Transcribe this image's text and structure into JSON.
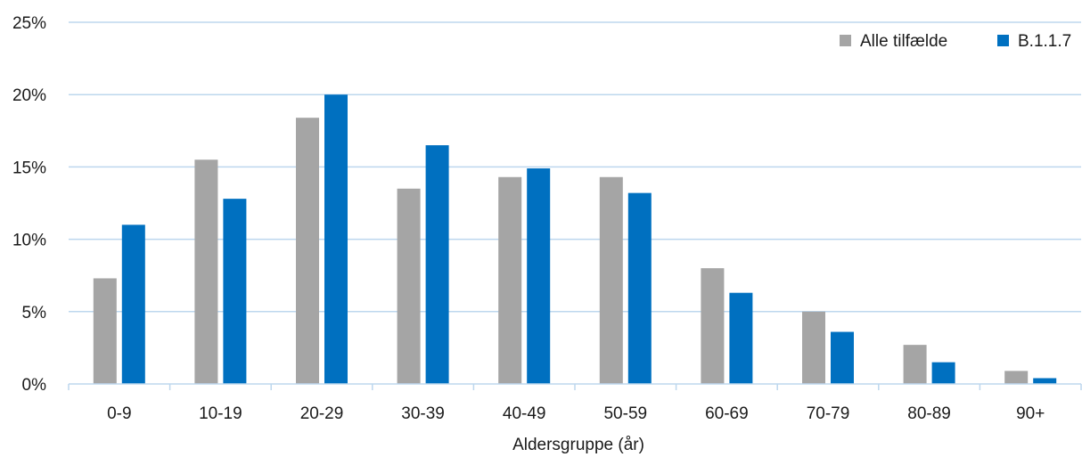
{
  "chart_data": {
    "type": "bar",
    "title": "",
    "xlabel": "Aldersgruppe (år)",
    "ylabel": "",
    "categories": [
      "0-9",
      "10-19",
      "20-29",
      "30-39",
      "40-49",
      "50-59",
      "60-69",
      "70-79",
      "80-89",
      "90+"
    ],
    "series": [
      {
        "name": "Alle tilfælde",
        "color": "#a5a5a5",
        "values": [
          7.3,
          15.5,
          18.4,
          13.5,
          14.3,
          14.3,
          8.0,
          5.0,
          2.7,
          0.9
        ]
      },
      {
        "name": "B.1.1.7",
        "color": "#0070c0",
        "values": [
          11.0,
          12.8,
          20.0,
          16.5,
          14.9,
          13.2,
          6.3,
          3.6,
          1.5,
          0.4
        ]
      }
    ],
    "ylim": [
      0,
      25
    ],
    "yticks": [
      "0%",
      "5%",
      "10%",
      "15%",
      "20%",
      "25%"
    ],
    "grid": true,
    "grid_color": "#bdd7ee",
    "legend_position": "top-right"
  }
}
